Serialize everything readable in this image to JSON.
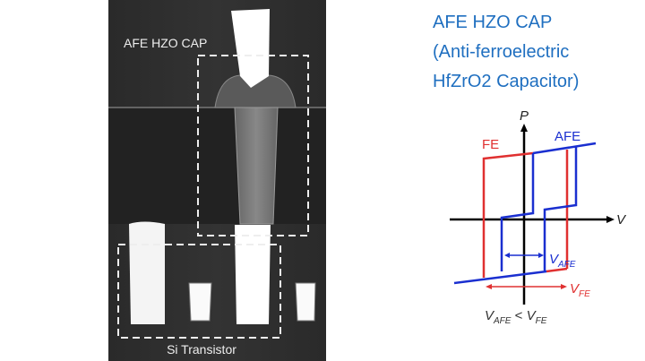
{
  "micrograph": {
    "cap_label": "AFE HZO CAP",
    "transistor_label": "Si Transistor"
  },
  "title": {
    "line1": "AFE HZO CAP",
    "line2": "(Anti-ferroelectric",
    "line3": "HfZrO2 Capacitor)"
  },
  "loop_diagram": {
    "y_axis_label": "P",
    "x_axis_label": "V",
    "fe_label": "FE",
    "afe_label": "AFE",
    "v_afe_main": "V",
    "v_afe_sub": "AFE",
    "v_fe_main": "V",
    "v_fe_sub": "FE",
    "relation": {
      "a": "V",
      "a_sub": "AFE",
      "op": " < ",
      "b": "V",
      "b_sub": "FE"
    },
    "colors": {
      "fe": "#e03030",
      "afe": "#1a2fd0",
      "axis": "#000000"
    }
  }
}
